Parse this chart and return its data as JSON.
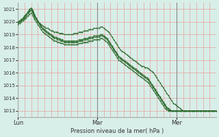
{
  "title": "",
  "xlabel": "Pression niveau de la mer( hPa )",
  "ylabel": "",
  "bg_color": "#d8eee8",
  "grid_color_h": "#e8a0a0",
  "grid_color_v": "#e8a0a0",
  "sep_color": "#888888",
  "line_color": "#2d6a2d",
  "ylim": [
    1012.5,
    1021.5
  ],
  "yticks": [
    1013,
    1014,
    1015,
    1016,
    1017,
    1018,
    1019,
    1020,
    1021
  ],
  "day_labels": [
    "Lun",
    "Mar",
    "Mer"
  ],
  "day_positions": [
    0,
    48,
    96
  ],
  "n_points": 121,
  "lines": [
    [
      1020.0,
      1020.1,
      1020.2,
      1020.3,
      1020.5,
      1020.6,
      1020.7,
      1020.8,
      1020.9,
      1020.7,
      1020.4,
      1020.2,
      1020.0,
      1019.9,
      1019.8,
      1019.7,
      1019.6,
      1019.5,
      1019.5,
      1019.4,
      1019.3,
      1019.3,
      1019.2,
      1019.2,
      1019.2,
      1019.1,
      1019.1,
      1019.1,
      1019.0,
      1019.0,
      1019.0,
      1019.0,
      1019.0,
      1019.0,
      1019.1,
      1019.1,
      1019.1,
      1019.2,
      1019.2,
      1019.2,
      1019.3,
      1019.3,
      1019.3,
      1019.4,
      1019.4,
      1019.4,
      1019.5,
      1019.5,
      1019.5,
      1019.5,
      1019.6,
      1019.6,
      1019.5,
      1019.4,
      1019.3,
      1019.2,
      1019.0,
      1018.8,
      1018.6,
      1018.4,
      1018.2,
      1018.0,
      1017.8,
      1017.7,
      1017.6,
      1017.5,
      1017.4,
      1017.3,
      1017.2,
      1017.1,
      1017.0,
      1016.9,
      1016.8,
      1016.7,
      1016.6,
      1016.5,
      1016.5,
      1016.4,
      1016.4,
      1016.3,
      1016.2,
      1016.1,
      1016.0,
      1015.8,
      1015.6,
      1015.4,
      1015.2,
      1015.0,
      1014.8,
      1014.6,
      1014.4,
      1014.2,
      1014.0,
      1013.8,
      1013.6,
      1013.5,
      1013.4,
      1013.3,
      1013.2,
      1013.1,
      1013.0,
      1013.0,
      1013.0,
      1013.0,
      1013.0,
      1013.0,
      1013.0,
      1013.0,
      1013.0,
      1013.0,
      1013.0,
      1013.0,
      1013.0,
      1013.0,
      1013.0,
      1013.0,
      1013.0,
      1013.0,
      1013.0,
      1013.0,
      1013.0
    ],
    [
      1020.0,
      1020.0,
      1020.1,
      1020.2,
      1020.4,
      1020.6,
      1020.8,
      1021.0,
      1021.1,
      1020.9,
      1020.6,
      1020.3,
      1020.1,
      1019.9,
      1019.7,
      1019.5,
      1019.4,
      1019.3,
      1019.2,
      1019.1,
      1019.0,
      1018.9,
      1018.8,
      1018.8,
      1018.7,
      1018.7,
      1018.6,
      1018.6,
      1018.5,
      1018.5,
      1018.5,
      1018.5,
      1018.5,
      1018.5,
      1018.5,
      1018.5,
      1018.5,
      1018.6,
      1018.6,
      1018.6,
      1018.7,
      1018.7,
      1018.7,
      1018.8,
      1018.8,
      1018.8,
      1018.9,
      1018.9,
      1018.9,
      1018.9,
      1019.0,
      1019.0,
      1018.9,
      1018.8,
      1018.7,
      1018.5,
      1018.3,
      1018.1,
      1017.9,
      1017.7,
      1017.5,
      1017.3,
      1017.2,
      1017.1,
      1017.0,
      1016.9,
      1016.8,
      1016.7,
      1016.6,
      1016.5,
      1016.4,
      1016.3,
      1016.2,
      1016.1,
      1016.0,
      1015.9,
      1015.8,
      1015.7,
      1015.6,
      1015.5,
      1015.3,
      1015.1,
      1014.9,
      1014.7,
      1014.5,
      1014.3,
      1014.1,
      1013.9,
      1013.7,
      1013.5,
      1013.3,
      1013.2,
      1013.1,
      1013.0,
      1013.0,
      1013.0,
      1013.0,
      1013.0,
      1013.0,
      1013.0,
      1013.0,
      1013.0,
      1013.0,
      1013.0,
      1013.0,
      1013.0,
      1013.0,
      1013.0,
      1013.0,
      1013.0,
      1013.0,
      1013.0,
      1013.0,
      1013.0,
      1013.0,
      1013.0,
      1013.0,
      1013.0,
      1013.0,
      1013.0,
      1013.0
    ],
    [
      1019.9,
      1020.0,
      1020.1,
      1020.2,
      1020.3,
      1020.5,
      1020.7,
      1020.9,
      1021.0,
      1020.8,
      1020.5,
      1020.2,
      1020.0,
      1019.8,
      1019.6,
      1019.4,
      1019.3,
      1019.2,
      1019.1,
      1019.0,
      1018.9,
      1018.8,
      1018.7,
      1018.7,
      1018.6,
      1018.6,
      1018.5,
      1018.5,
      1018.4,
      1018.4,
      1018.4,
      1018.4,
      1018.4,
      1018.4,
      1018.4,
      1018.4,
      1018.4,
      1018.5,
      1018.5,
      1018.5,
      1018.6,
      1018.6,
      1018.6,
      1018.7,
      1018.7,
      1018.7,
      1018.8,
      1018.8,
      1018.8,
      1018.8,
      1018.9,
      1018.9,
      1018.8,
      1018.7,
      1018.6,
      1018.4,
      1018.2,
      1018.0,
      1017.8,
      1017.6,
      1017.4,
      1017.2,
      1017.1,
      1017.0,
      1016.9,
      1016.8,
      1016.7,
      1016.6,
      1016.5,
      1016.4,
      1016.3,
      1016.2,
      1016.1,
      1016.0,
      1015.9,
      1015.8,
      1015.7,
      1015.6,
      1015.5,
      1015.4,
      1015.2,
      1015.0,
      1014.8,
      1014.6,
      1014.4,
      1014.2,
      1014.0,
      1013.8,
      1013.6,
      1013.4,
      1013.2,
      1013.1,
      1013.0,
      1013.0,
      1013.0,
      1013.0,
      1013.0,
      1013.0,
      1013.0,
      1013.0,
      1013.0,
      1013.0,
      1013.0,
      1013.0,
      1013.0,
      1013.0,
      1013.0,
      1013.0,
      1013.0,
      1013.0,
      1013.0,
      1013.0,
      1013.0,
      1013.0,
      1013.0,
      1013.0,
      1013.0,
      1013.0,
      1013.0,
      1013.0,
      1013.0
    ],
    [
      1019.8,
      1019.9,
      1020.0,
      1020.1,
      1020.2,
      1020.3,
      1020.5,
      1020.6,
      1020.7,
      1020.5,
      1020.2,
      1020.0,
      1019.8,
      1019.6,
      1019.4,
      1019.2,
      1019.1,
      1019.0,
      1018.9,
      1018.8,
      1018.7,
      1018.6,
      1018.5,
      1018.5,
      1018.4,
      1018.4,
      1018.3,
      1018.3,
      1018.2,
      1018.2,
      1018.2,
      1018.2,
      1018.2,
      1018.2,
      1018.2,
      1018.2,
      1018.2,
      1018.3,
      1018.3,
      1018.3,
      1018.4,
      1018.4,
      1018.4,
      1018.5,
      1018.5,
      1018.5,
      1018.6,
      1018.6,
      1018.6,
      1018.6,
      1018.7,
      1018.7,
      1018.6,
      1018.5,
      1018.4,
      1018.2,
      1018.0,
      1017.8,
      1017.6,
      1017.4,
      1017.2,
      1017.0,
      1016.9,
      1016.8,
      1016.7,
      1016.6,
      1016.5,
      1016.4,
      1016.3,
      1016.2,
      1016.1,
      1016.0,
      1015.9,
      1015.8,
      1015.7,
      1015.6,
      1015.5,
      1015.4,
      1015.3,
      1015.2,
      1015.0,
      1014.8,
      1014.6,
      1014.4,
      1014.2,
      1014.0,
      1013.8,
      1013.6,
      1013.4,
      1013.2,
      1013.1,
      1013.0,
      1013.0,
      1013.0,
      1013.0,
      1013.0,
      1013.0,
      1013.0,
      1013.0,
      1013.0,
      1013.0,
      1013.0,
      1013.0,
      1013.0,
      1013.0,
      1013.0,
      1013.0,
      1013.0,
      1013.0,
      1013.0,
      1013.0,
      1013.0,
      1013.0,
      1013.0,
      1013.0,
      1013.0,
      1013.0,
      1013.0,
      1013.0,
      1013.0,
      1013.0
    ]
  ]
}
